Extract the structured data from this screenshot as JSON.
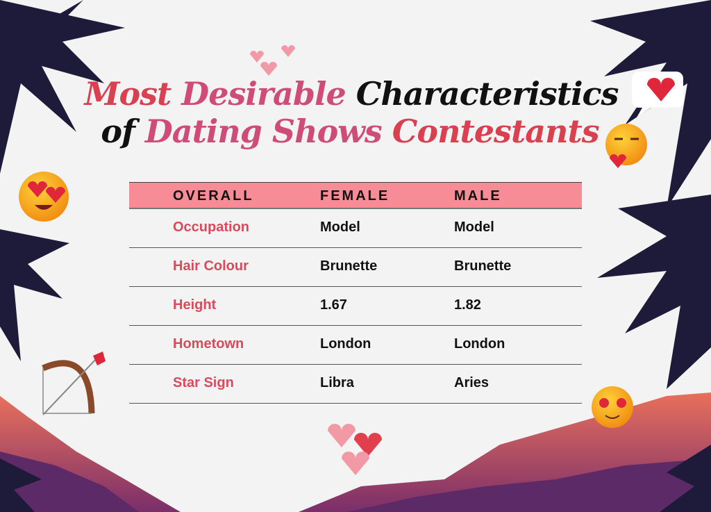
{
  "title": {
    "line1": [
      "Most",
      "Desirable",
      "Characteristics"
    ],
    "line2": [
      "of",
      "Dating Shows",
      "Contestants"
    ]
  },
  "table": {
    "headers": [
      "OVERALL",
      "FEMALE",
      "MALE"
    ],
    "rows": [
      {
        "label": "Occupation",
        "female": "Model",
        "male": "Model"
      },
      {
        "label": "Hair Colour",
        "female": "Brunette",
        "male": "Brunette"
      },
      {
        "label": "Height",
        "female": "1.67",
        "male": "1.82"
      },
      {
        "label": "Hometown",
        "female": "London",
        "male": "London"
      },
      {
        "label": "Star Sign",
        "female": "Libra",
        "male": "Aries"
      }
    ]
  },
  "colors": {
    "header": "#f78c96",
    "label": "#d94a5a",
    "title_red": "#d94050",
    "title_pink": "#d04c78",
    "palm": "#1e1b3a"
  },
  "decorations": [
    "palm-tree-icon",
    "heart-eyes-emoji-icon",
    "kiss-emoji-icon",
    "bow-arrow-icon",
    "heart-icon",
    "speech-bubble-heart-icon",
    "mountain-icon"
  ]
}
